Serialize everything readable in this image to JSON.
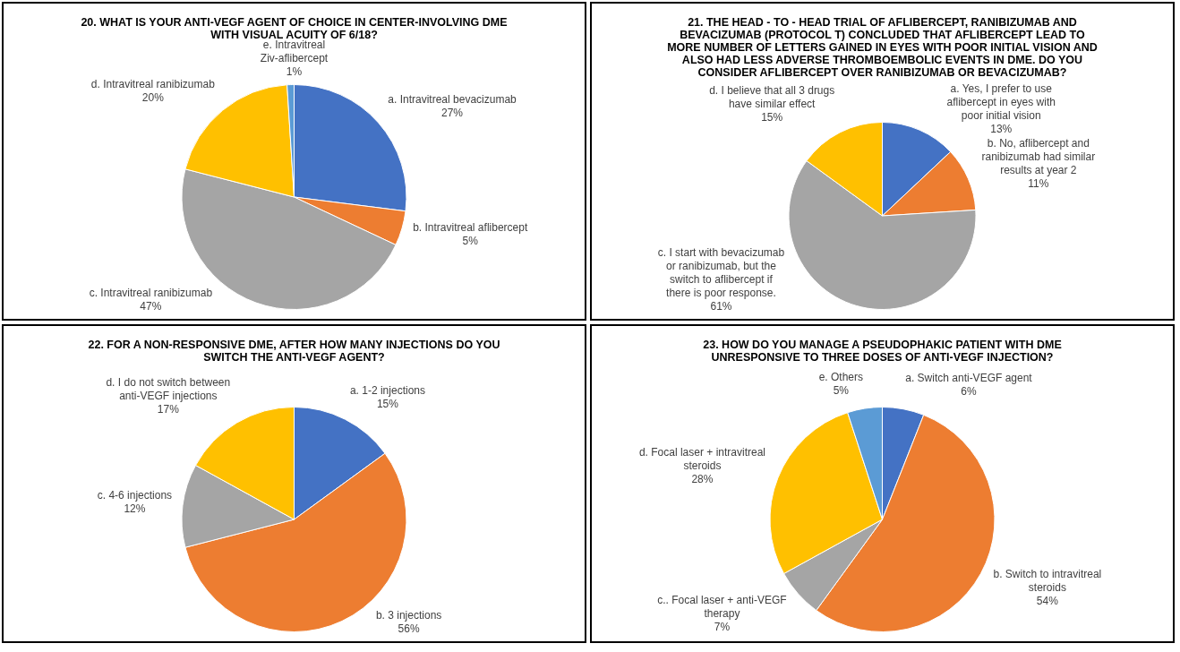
{
  "chart_data": [
    {
      "type": "pie",
      "title": "20. WHAT IS YOUR ANTI-VEGF AGENT OF CHOICE IN CENTER-INVOLVING DME WITH VISUAL ACUITY OF 6/18?",
      "categories": [
        "a. Intravitreal bevacizumab",
        "b. Intravitreal aflibercept",
        "c. Intravitreal ranibizumab",
        "d. Intravitreal ranibizumab",
        "e. Intravitreal Ziv-aflibercept"
      ],
      "values": [
        27,
        5,
        47,
        20,
        1
      ],
      "colors": [
        "#4472c4",
        "#ed7d31",
        "#a5a5a5",
        "#ffc000",
        "#5b9bd5"
      ],
      "value_labels": [
        "27%",
        "5%",
        "47%",
        "20%",
        "1%"
      ]
    },
    {
      "type": "pie",
      "title": "21.  THE HEAD - TO - HEAD TRIAL OF AFLIBERCEPT, RANIBIZUMAB AND BEVACIZUMAB (PROTOCOL T) CONCLUDED THAT AFLIBERCEPT LEAD TO MORE NUMBER OF LETTERS GAINED IN EYES WITH POOR INITIAL VISION AND ALSO HAD LESS ADVERSE THROMBOEMBOLIC EVENTS IN DME. DO YOU CONSIDER AFLIBERCEPT OVER RANIBIZUMAB OR BEVACIZUMAB?",
      "categories": [
        "a. Yes, I prefer to use aflibercept in eyes with poor initial vision",
        "b. No, aflibercept and ranibizumab had similar results at year 2",
        "c. I start with bevacizumab or ranibizumab, but the switch to aflibercept if there is poor response.",
        "d. I believe that all 3 drugs have similar effect"
      ],
      "values": [
        13,
        11,
        61,
        15
      ],
      "colors": [
        "#4472c4",
        "#ed7d31",
        "#a5a5a5",
        "#ffc000"
      ],
      "value_labels": [
        "13%",
        "11%",
        "61%",
        "15%"
      ]
    },
    {
      "type": "pie",
      "title": "22. FOR A NON-RESPONSIVE DME, AFTER HOW MANY INJECTIONS DO YOU SWITCH THE ANTI-VEGF AGENT?",
      "categories": [
        "a. 1-2 injections",
        "b. 3 injections",
        "c. 4-6 injections",
        "d. I do not switch between anti-VEGF injections"
      ],
      "values": [
        15,
        56,
        12,
        17
      ],
      "colors": [
        "#4472c4",
        "#ed7d31",
        "#a5a5a5",
        "#ffc000"
      ],
      "value_labels": [
        "15%",
        "56%",
        "12%",
        "17%"
      ]
    },
    {
      "type": "pie",
      "title": "23. HOW DO YOU MANAGE A PSEUDOPHAKIC PATIENT WITH DME UNRESPONSIVE TO THREE DOSES OF ANTI-VEGF INJECTION?",
      "categories": [
        "a. Switch anti-VEGF agent",
        "b. Switch to intravitreal steroids",
        "c.. Focal laser + anti-VEGF therapy",
        "d. Focal laser + intravitreal steroids",
        "e. Others"
      ],
      "values": [
        6,
        54,
        7,
        28,
        5
      ],
      "colors": [
        "#4472c4",
        "#ed7d31",
        "#a5a5a5",
        "#ffc000",
        "#5b9bd5"
      ],
      "value_labels": [
        "6%",
        "54%",
        "7%",
        "28%",
        "5%"
      ]
    }
  ]
}
